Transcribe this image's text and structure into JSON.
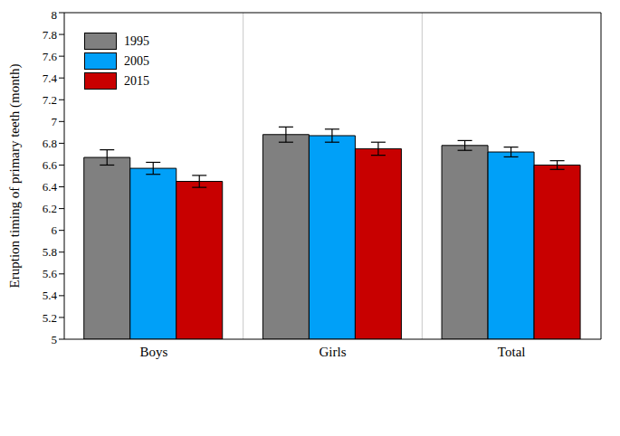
{
  "chart_data": {
    "type": "bar",
    "y_label": "Eruption timing of primary teeth (month)",
    "categories": [
      "Boys",
      "Girls",
      "Total"
    ],
    "series": [
      {
        "name": "1995",
        "color": "#808080",
        "values": [
          6.67,
          6.88,
          6.78
        ],
        "errors": [
          0.07,
          0.07,
          0.045
        ]
      },
      {
        "name": "2005",
        "color": "#00a0f8",
        "values": [
          6.57,
          6.87,
          6.72
        ],
        "errors": [
          0.055,
          0.06,
          0.045
        ]
      },
      {
        "name": "2015",
        "color": "#c80000",
        "values": [
          6.45,
          6.75,
          6.6
        ],
        "errors": [
          0.055,
          0.06,
          0.04
        ]
      }
    ],
    "ylim": [
      5,
      8
    ],
    "yticks": [
      5,
      5.2,
      5.4,
      5.6,
      5.8,
      6,
      6.2,
      6.4,
      6.6,
      6.8,
      7,
      7.2,
      7.4,
      7.6,
      7.8,
      8
    ],
    "legend": "upper left"
  }
}
